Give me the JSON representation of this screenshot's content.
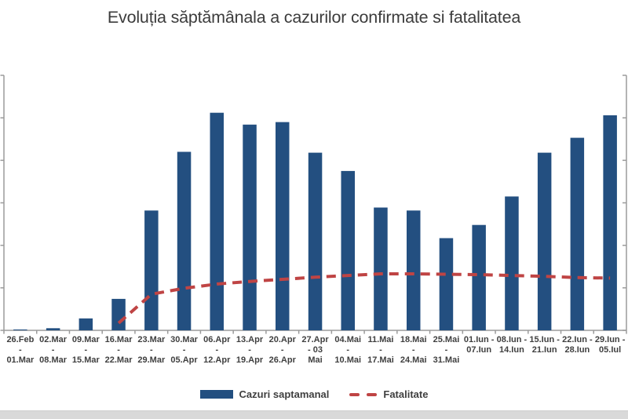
{
  "colors": {
    "background": "#ffffff",
    "bar_blue": "#234f80",
    "line_red": "#bf4444",
    "axis_gray": "#9b9b9b",
    "label_text": "#3f3f3f",
    "title_text": "#3c3c3c",
    "strip_gray": "#d9d9d9"
  },
  "chart_data": {
    "type": "combo",
    "subtypes": [
      "bar",
      "line"
    ],
    "title": "Evoluția săptămânala a cazurilor confirmate si fatalitatea",
    "categories": [
      [
        "26.Feb",
        "-",
        "01.Mar"
      ],
      [
        "02.Mar",
        "-",
        "08.Mar"
      ],
      [
        "09.Mar",
        "-",
        "15.Mar"
      ],
      [
        "16.Mar",
        "-",
        "22.Mar"
      ],
      [
        "23.Mar",
        "-",
        "29.Mar"
      ],
      [
        "30.Mar",
        "-",
        "05.Apr"
      ],
      [
        "06.Apr",
        "-",
        "12.Apr"
      ],
      [
        "13.Apr",
        "-",
        "19.Apr"
      ],
      [
        "20.Apr",
        "-",
        "26.Apr"
      ],
      [
        "27.Apr",
        "- 03",
        "Mai"
      ],
      [
        "04.Mai",
        "-",
        "10.Mai"
      ],
      [
        "11.Mai",
        "-",
        "17.Mai"
      ],
      [
        "18.Mai",
        "-",
        "24.Mai"
      ],
      [
        "25.Mai",
        "-",
        "31.Mai"
      ],
      [
        "01.Iun -",
        "07.Iun"
      ],
      [
        "08.Iun -",
        "14.Iun"
      ],
      [
        "15.Iun -",
        "21.Iun"
      ],
      [
        "22.Iun -",
        "28.Iun"
      ],
      [
        "29.Iun -",
        "05.Iul"
      ]
    ],
    "series": [
      {
        "name": "Cazuri saptamanal",
        "type": "bar",
        "color": "#234f80",
        "values": [
          0.02,
          0.05,
          0.28,
          0.74,
          2.82,
          4.2,
          5.12,
          4.84,
          4.9,
          4.18,
          3.75,
          2.89,
          2.82,
          2.17,
          2.48,
          3.15,
          4.18,
          4.53,
          5.06
        ]
      },
      {
        "name": "Fatalitate",
        "type": "line",
        "style": "dashed",
        "color": "#bf4444",
        "values": [
          null,
          null,
          null,
          0.17,
          0.85,
          0.99,
          1.09,
          1.15,
          1.2,
          1.25,
          1.29,
          1.33,
          1.33,
          1.32,
          1.31,
          1.29,
          1.27,
          1.24,
          1.23
        ]
      }
    ],
    "value_units": "axis tick units (left/right axis numeric labels are cropped out of the image; 1 unit = one gridline interval, ylim 0–6)",
    "ylim": [
      0,
      6
    ],
    "y_tick_count": 7,
    "grid": false,
    "legend_position": "bottom"
  }
}
